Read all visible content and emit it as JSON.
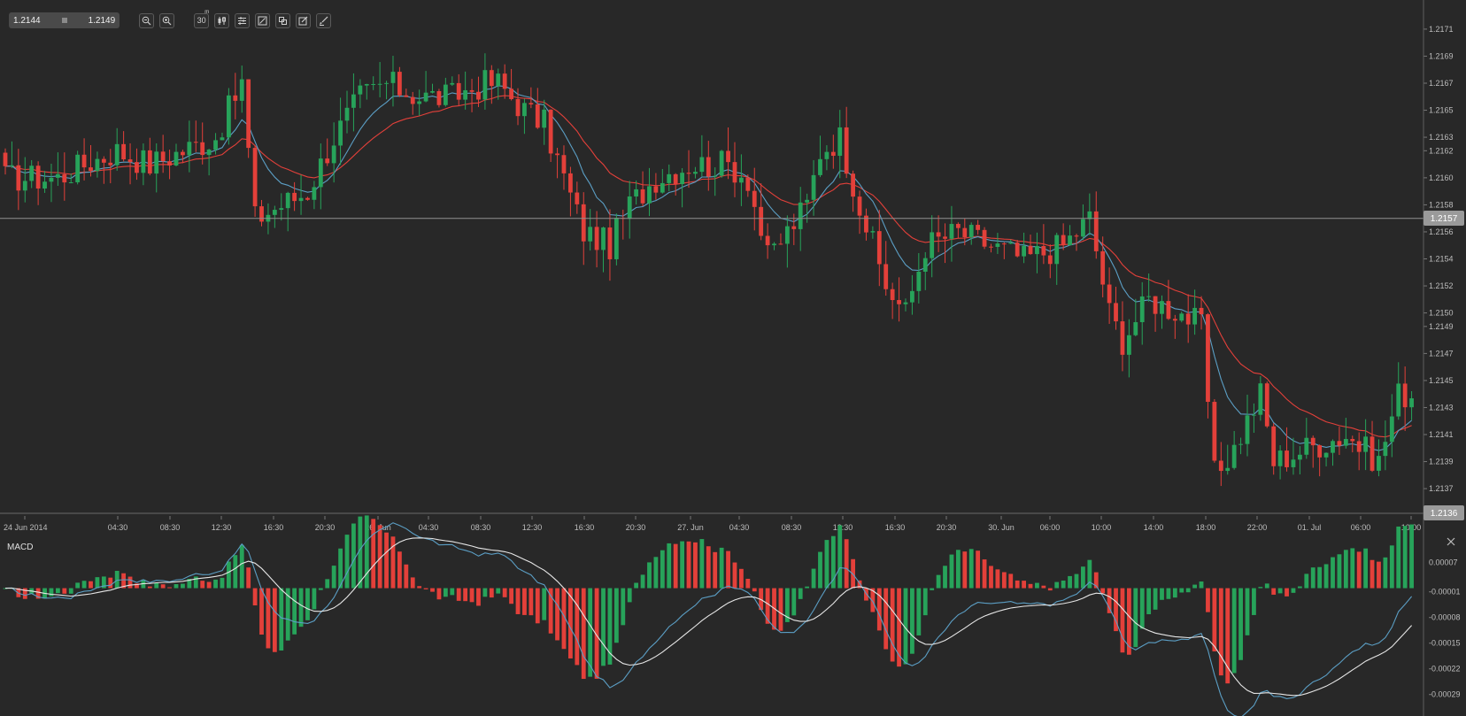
{
  "toolbar": {
    "bid": "1.2144",
    "ask": "1.2149",
    "timeframe": "30",
    "timeframe_sup": "m",
    "buttons": [
      "zoom-out-icon",
      "zoom-in-icon",
      "timeframe-button",
      "candle-type-icon",
      "indicators-icon",
      "draw-line-icon",
      "layers-icon",
      "edit-icon",
      "brush-icon"
    ]
  },
  "colors": {
    "background": "#282828",
    "bull": "#27a35a",
    "bear": "#e3403a",
    "ma_fast": "#5b9ec4",
    "ma_slow": "#e3403a",
    "macd_line": "#5b9ec4",
    "signal_line": "#e6e6e6",
    "crosshair": "#9a9a9a"
  },
  "price_axis": {
    "ticks": [
      "1.2171",
      "1.2169",
      "1.2167",
      "1.2165",
      "1.2163",
      "1.2162",
      "1.2160",
      "1.2158",
      "1.2156",
      "1.2154",
      "1.2152",
      "1.2150",
      "1.2149",
      "1.2147",
      "1.2145",
      "1.2143",
      "1.2141",
      "1.2139",
      "1.2137"
    ],
    "current_price": "1.2157",
    "bottom_label": "1.2136"
  },
  "time_axis": {
    "labels": [
      "24 Jun 2014",
      "04:30",
      "08:30",
      "12:30",
      "16:30",
      "20:30",
      "26. Jun",
      "04:30",
      "08:30",
      "12:30",
      "16:30",
      "20:30",
      "27. Jun",
      "04:30",
      "08:30",
      "12:30",
      "16:30",
      "20:30",
      "30. Jun",
      "06:00",
      "10:00",
      "14:00",
      "18:00",
      "22:00",
      "01. Jul",
      "06:00",
      "10:00"
    ]
  },
  "macd": {
    "title": "MACD",
    "ticks": [
      "0.00007",
      "-0.00001",
      "-0.00008",
      "-0.00015",
      "-0.00022",
      "-0.00029"
    ]
  },
  "chart_data": {
    "type": "candlestick",
    "ylim": [
      1.21355,
      1.21725
    ],
    "close_anchors": [
      [
        0,
        1.216
      ],
      [
        8,
        1.216
      ],
      [
        12,
        1.2161
      ],
      [
        17,
        1.2162
      ],
      [
        22,
        1.2161
      ],
      [
        27,
        1.2162
      ],
      [
        32,
        1.2163
      ],
      [
        36,
        1.2167
      ],
      [
        38,
        1.2157
      ],
      [
        42,
        1.2158
      ],
      [
        46,
        1.2159
      ],
      [
        50,
        1.2163
      ],
      [
        54,
        1.2166
      ],
      [
        58,
        1.2167
      ],
      [
        63,
        1.2166
      ],
      [
        68,
        1.2166
      ],
      [
        73,
        1.2167
      ],
      [
        75,
        1.2167
      ],
      [
        79,
        1.2165
      ],
      [
        82,
        1.2164
      ],
      [
        85,
        1.216
      ],
      [
        88,
        1.2156
      ],
      [
        92,
        1.2155
      ],
      [
        95,
        1.2158
      ],
      [
        99,
        1.216
      ],
      [
        104,
        1.2161
      ],
      [
        110,
        1.2161
      ],
      [
        113,
        1.216
      ],
      [
        116,
        1.2154
      ],
      [
        119,
        1.2156
      ],
      [
        122,
        1.2158
      ],
      [
        124,
        1.2162
      ],
      [
        127,
        1.2163
      ],
      [
        130,
        1.2158
      ],
      [
        134,
        1.2152
      ],
      [
        137,
        1.215
      ],
      [
        140,
        1.2155
      ],
      [
        145,
        1.2156
      ],
      [
        150,
        1.2155
      ],
      [
        155,
        1.2154
      ],
      [
        161,
        1.2155
      ],
      [
        165,
        1.2157
      ],
      [
        168,
        1.215
      ],
      [
        170,
        1.2148
      ],
      [
        174,
        1.2151
      ],
      [
        179,
        1.215
      ],
      [
        182,
        1.2149
      ],
      [
        184,
        1.2138
      ],
      [
        187,
        1.214
      ],
      [
        191,
        1.2144
      ],
      [
        193,
        1.2139
      ],
      [
        198,
        1.214
      ],
      [
        204,
        1.2141
      ],
      [
        209,
        1.2139
      ],
      [
        212,
        1.2144
      ],
      [
        214,
        1.2144
      ]
    ],
    "candle_count": 215,
    "ma_fast_period": 9,
    "ma_slow_period": 21,
    "macd_ylim": [
      -0.00034,
      0.00012
    ],
    "macd_fast": 12,
    "macd_slow": 26,
    "macd_signal": 9
  }
}
